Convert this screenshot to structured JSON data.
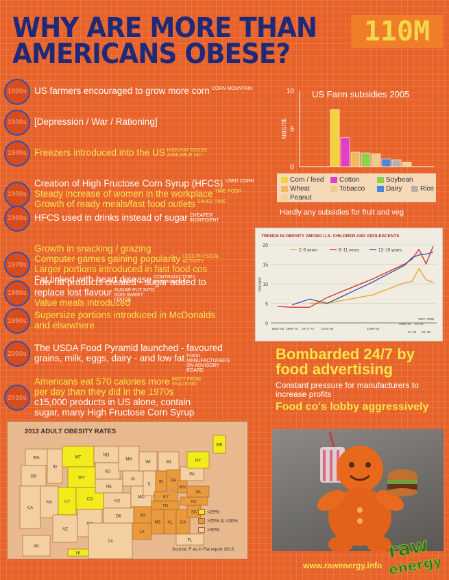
{
  "title": {
    "line1": "WHY ARE MORE THAN",
    "number": "110M",
    "line2": "AMERICANS OBESE?"
  },
  "timeline": [
    {
      "decade": "1920s",
      "lines": [
        {
          "text": "US farmers encouraged to grow more corn",
          "note": "CORN MOUNTAIN",
          "color": "white"
        }
      ]
    },
    {
      "decade": "1930s",
      "lines": [
        {
          "text": "[Depression / War / Rationing]",
          "note": "",
          "color": "white"
        }
      ]
    },
    {
      "decade": "1940s",
      "lines": [
        {
          "text": "Freezers introduced into the US",
          "note": "HIGH FAT FOODS AVAILABLE 24/7",
          "color": "yellow"
        }
      ]
    },
    {
      "decade": "1950s",
      "lines": [
        {
          "text": "Creation of High Fructose Corn Syrup (HFCS)",
          "note": "USED CORN",
          "color": "white"
        },
        {
          "text": "Steady increase of women in the workplace",
          "note": "TIME POOR",
          "color": "yellow"
        },
        {
          "text": "Growth of ready meals/fast food outlets",
          "note": "SAVED TIME",
          "color": "yellow"
        }
      ]
    },
    {
      "decade": "1960s",
      "lines": [
        {
          "text": "HFCS used in drinks instead of sugar",
          "note": "CHEAPER INGREDIENT",
          "color": "white"
        }
      ]
    },
    {
      "decade": "1970s",
      "lines": [
        {
          "text": "Growth in snacking / grazing",
          "note": "",
          "color": "yellow"
        },
        {
          "text": "Computer games gaining popularity",
          "note": "LESS PHYSICAL ACTIVITY",
          "color": "yellow"
        },
        {
          "text": "Larger portions introduced in fast food cos",
          "note": "",
          "color": "yellow"
        },
        {
          "text": "Fat linked with heart disease",
          "note": "CONTRADICTORY DATA IGNORED",
          "color": "white"
        }
      ]
    },
    {
      "decade": "1980s",
      "lines": [
        {
          "text": "Low-fat products created - sugar added to",
          "note": "",
          "color": "white"
        },
        {
          "text": "replace lost flavour",
          "note": "SUGAR PUT INTO NON-SWEET FOODS",
          "color": "white"
        },
        {
          "text": "Value meals introduced",
          "note": "",
          "color": "yellow"
        }
      ]
    },
    {
      "decade": "1990s",
      "lines": [
        {
          "text": "Supersize portions introduced in McDonalds",
          "note": "",
          "color": "yellow"
        },
        {
          "text": "and elsewhere",
          "note": "",
          "color": "yellow"
        }
      ]
    },
    {
      "decade": "2000s",
      "lines": [
        {
          "text": "The USDA Food Pyramid launched - favoured",
          "note": "",
          "color": "white"
        },
        {
          "text": "grains, milk, eggs, dairy - and low fat",
          "note": "FOOD MANUFACTURERS ON ADVISORY BOARD",
          "color": "white"
        }
      ]
    },
    {
      "decade": "2010s",
      "lines": [
        {
          "text": "Americans eat 570 calories more",
          "note": "MOST FROM SNACKING",
          "color": "yellow"
        },
        {
          "text": "per day than they did in the 1970s",
          "note": "",
          "color": "yellow"
        },
        {
          "text": "c15,000 products in US alone, contain",
          "note": "",
          "color": "white"
        },
        {
          "text": "sugar, many High Fructose Corn Syrup",
          "note": "",
          "color": "white"
        }
      ]
    }
  ],
  "chart_data": [
    {
      "type": "bar",
      "title": "US Farm subsidies 2005",
      "xlabel": "",
      "ylabel": "$USBN",
      "ylim": [
        0,
        10
      ],
      "yticks": [
        0,
        5,
        10
      ],
      "categories": [
        "Corn / feed",
        "Cotton",
        "Wheat",
        "Soybean",
        "Tobacco",
        "Dairy",
        "Rice",
        "Peanut"
      ],
      "values": [
        7.5,
        3.8,
        1.9,
        1.8,
        1.7,
        1.0,
        0.9,
        0.6
      ],
      "colors": [
        "#f4d23c",
        "#e040c8",
        "#f2b860",
        "#8ad24a",
        "#f0c890",
        "#4a86d8",
        "#b8b0a8",
        "#f6d08a"
      ],
      "legend": [
        "Corn / feed",
        "Cotton",
        "Soybean",
        "Wheat",
        "Tobacco",
        "Dairy",
        "Rice",
        "Peanut"
      ],
      "note": "Hardly any subsidies for fruit and veg"
    },
    {
      "type": "line",
      "title": "TRENDS IN OBESITY AMONG U.S. CHILDREN AND ADOLESCENTS",
      "ylabel": "Percent",
      "ylim": [
        0,
        20
      ],
      "yticks": [
        0,
        5,
        10,
        15,
        20
      ],
      "x_labels": [
        "1963–65",
        "1966–70",
        "1971–74",
        "1976–80",
        "1988–94",
        "1999–00",
        "01–02",
        "03–04",
        "05–06",
        "2007–2008"
      ],
      "series": [
        {
          "name": "2–5 years",
          "color": "#e8a830",
          "x": [
            1973,
            1978,
            1991,
            2000,
            2002,
            2004,
            2006,
            2008
          ],
          "y": [
            5.0,
            5.0,
            7.2,
            10.3,
            10.6,
            13.9,
            11.0,
            10.4
          ]
        },
        {
          "name": "6–11 years",
          "color": "#d8342a",
          "x": [
            1964,
            1968,
            1973,
            1978,
            1991,
            2000,
            2002,
            2004,
            2006,
            2008
          ],
          "y": [
            4.2,
            4.0,
            4.0,
            6.5,
            11.3,
            15.1,
            16.3,
            18.8,
            15.1,
            19.6
          ]
        },
        {
          "name": "12–19 years",
          "color": "#4858a8",
          "x": [
            1968,
            1973,
            1978,
            1991,
            2000,
            2002,
            2004,
            2006,
            2008
          ],
          "y": [
            4.6,
            6.1,
            5.0,
            10.5,
            14.8,
            16.7,
            17.4,
            17.6,
            18.1
          ]
        }
      ]
    }
  ],
  "bombarded": {
    "title": "Bombarded 24/7 by food advertising",
    "sub": "Constant pressure for manufacturers to increase profits",
    "lobby": "Food co's lobby aggressively"
  },
  "map": {
    "title": "2012 ADULT OBESITY RATES",
    "source": "Source: F as in Fat report 2013",
    "legend": [
      "<25%",
      ">25% & <30%",
      ">30%"
    ],
    "colors": {
      "low": "#f2ec1c",
      "mid": "#e99a3c",
      "high": "#f4cfa0"
    },
    "states": [
      "MT",
      "ND",
      "MN",
      "WI",
      "MI",
      "SD",
      "WY",
      "NE",
      "IA",
      "IL",
      "IN",
      "OH",
      "PA",
      "NY",
      "NV",
      "UT",
      "CO",
      "KS",
      "MO",
      "KY",
      "WV",
      "VA",
      "AZ",
      "NM",
      "OK",
      "AR",
      "TN",
      "NC",
      "TX",
      "LA",
      "MS",
      "AL",
      "GA",
      "SC",
      "FL",
      "HI",
      "AK",
      "CA",
      "OR",
      "WA",
      "ID",
      "ME"
    ]
  },
  "footer": {
    "url": "www.rawenergy.info",
    "logo_line1": "raw",
    "logo_line2": "energy"
  }
}
